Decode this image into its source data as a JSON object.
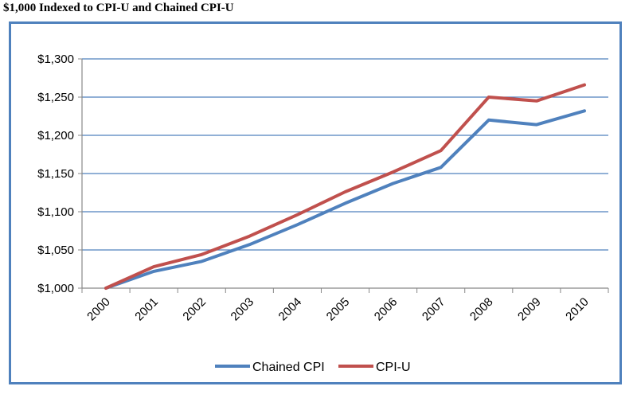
{
  "chart_data": {
    "type": "line",
    "title": "$1,000 Indexed to CPI-U and Chained CPI-U",
    "xlabel": "",
    "ylabel": "",
    "x": [
      "2000",
      "2001",
      "2002",
      "2003",
      "2004",
      "2005",
      "2006",
      "2007",
      "2008",
      "2009",
      "2010"
    ],
    "ylim": [
      1000,
      1300
    ],
    "yticks": [
      1000,
      1050,
      1100,
      1150,
      1200,
      1250,
      1300
    ],
    "ytick_labels": [
      "$1,000",
      "$1,050",
      "$1,100",
      "$1,150",
      "$1,200",
      "$1,250",
      "$1,300"
    ],
    "grid": true,
    "legend_position": "bottom",
    "series": [
      {
        "name": "Chained CPI",
        "color": "#4f81bd",
        "values": [
          1000,
          1022,
          1035,
          1057,
          1083,
          1111,
          1137,
          1158,
          1220,
          1214,
          1232
        ]
      },
      {
        "name": "CPI-U",
        "color": "#c0504d",
        "values": [
          1000,
          1028,
          1044,
          1068,
          1096,
          1126,
          1152,
          1180,
          1250,
          1245,
          1266
        ]
      }
    ]
  }
}
